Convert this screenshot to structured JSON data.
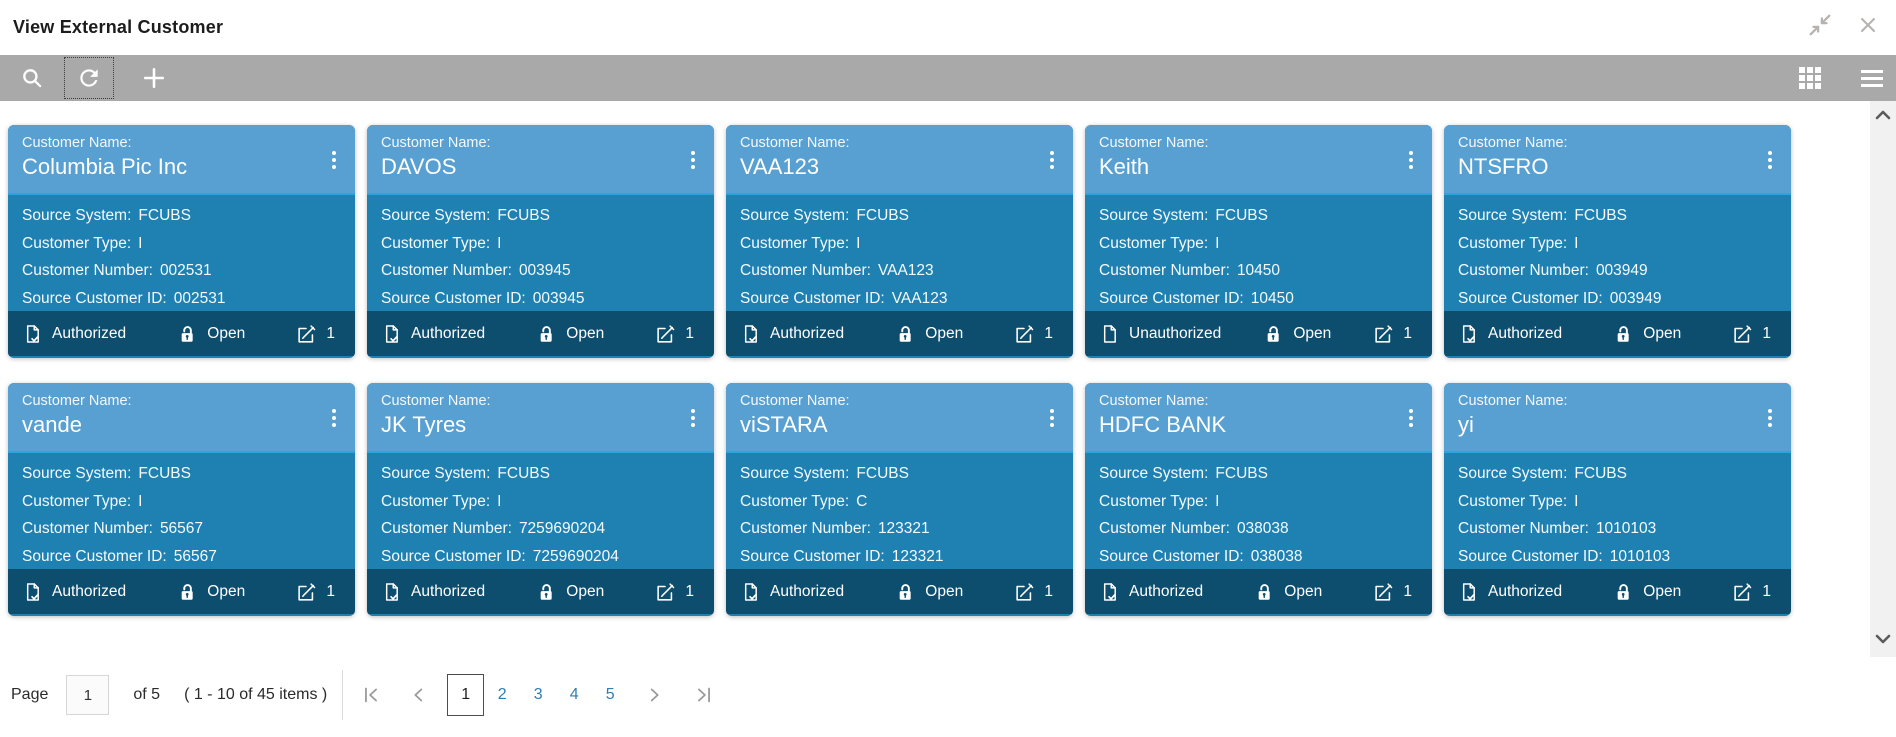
{
  "window": {
    "title": "View External Customer"
  },
  "labels": {
    "customer_name": "Customer Name:",
    "source_system": "Source System:",
    "customer_type": "Customer Type:",
    "customer_number": "Customer Number:",
    "source_customer_id": "Source Customer ID:"
  },
  "cards": [
    {
      "name": "Columbia Pic Inc",
      "source_system": "FCUBS",
      "customer_type": "I",
      "customer_number": "002531",
      "source_customer_id": "002531",
      "auth_status": "Authorized",
      "record_status": "Open",
      "edit_count": "1"
    },
    {
      "name": "DAVOS",
      "source_system": "FCUBS",
      "customer_type": "I",
      "customer_number": "003945",
      "source_customer_id": "003945",
      "auth_status": "Authorized",
      "record_status": "Open",
      "edit_count": "1"
    },
    {
      "name": "VAA123",
      "source_system": "FCUBS",
      "customer_type": "I",
      "customer_number": "VAA123",
      "source_customer_id": "VAA123",
      "auth_status": "Authorized",
      "record_status": "Open",
      "edit_count": "1"
    },
    {
      "name": "Keith",
      "source_system": "FCUBS",
      "customer_type": "I",
      "customer_number": "10450",
      "source_customer_id": "10450",
      "auth_status": "Unauthorized",
      "record_status": "Open",
      "edit_count": "1"
    },
    {
      "name": "NTSFRO",
      "source_system": "FCUBS",
      "customer_type": "I",
      "customer_number": "003949",
      "source_customer_id": "003949",
      "auth_status": "Authorized",
      "record_status": "Open",
      "edit_count": "1"
    },
    {
      "name": "vande",
      "source_system": "FCUBS",
      "customer_type": "I",
      "customer_number": "56567",
      "source_customer_id": "56567",
      "auth_status": "Authorized",
      "record_status": "Open",
      "edit_count": "1"
    },
    {
      "name": "JK Tyres",
      "source_system": "FCUBS",
      "customer_type": "I",
      "customer_number": "7259690204",
      "source_customer_id": "7259690204",
      "auth_status": "Authorized",
      "record_status": "Open",
      "edit_count": "1"
    },
    {
      "name": "viSTARA",
      "source_system": "FCUBS",
      "customer_type": "C",
      "customer_number": "123321",
      "source_customer_id": "123321",
      "auth_status": "Authorized",
      "record_status": "Open",
      "edit_count": "1"
    },
    {
      "name": "HDFC BANK",
      "source_system": "FCUBS",
      "customer_type": "I",
      "customer_number": "038038",
      "source_customer_id": "038038",
      "auth_status": "Authorized",
      "record_status": "Open",
      "edit_count": "1"
    },
    {
      "name": "yi",
      "source_system": "FCUBS",
      "customer_type": "I",
      "customer_number": "1010103",
      "source_customer_id": "1010103",
      "auth_status": "Authorized",
      "record_status": "Open",
      "edit_count": "1"
    }
  ],
  "pagination": {
    "page_label": "Page",
    "page_value": "1",
    "of_label": "of 5",
    "items_label": "( 1 - 10 of 45 items )",
    "current_page": "1",
    "other_pages": [
      "2",
      "3",
      "4",
      "5"
    ]
  },
  "icons": [
    "search",
    "refresh",
    "add",
    "grid-view",
    "list-menu",
    "collapse",
    "close",
    "document-check",
    "document",
    "lock-open",
    "edit",
    "kebab-menu",
    "scroll-up",
    "scroll-down",
    "first-page",
    "prev-page",
    "next-page",
    "last-page"
  ],
  "colors": {
    "card_header": "#58a0d1",
    "card_body": "#1f81b1",
    "card_footer": "#0d4d6e",
    "card_divider": "#2ea3dc",
    "toolbar": "#a9a9a9",
    "page_link": "#2e7eb0"
  }
}
